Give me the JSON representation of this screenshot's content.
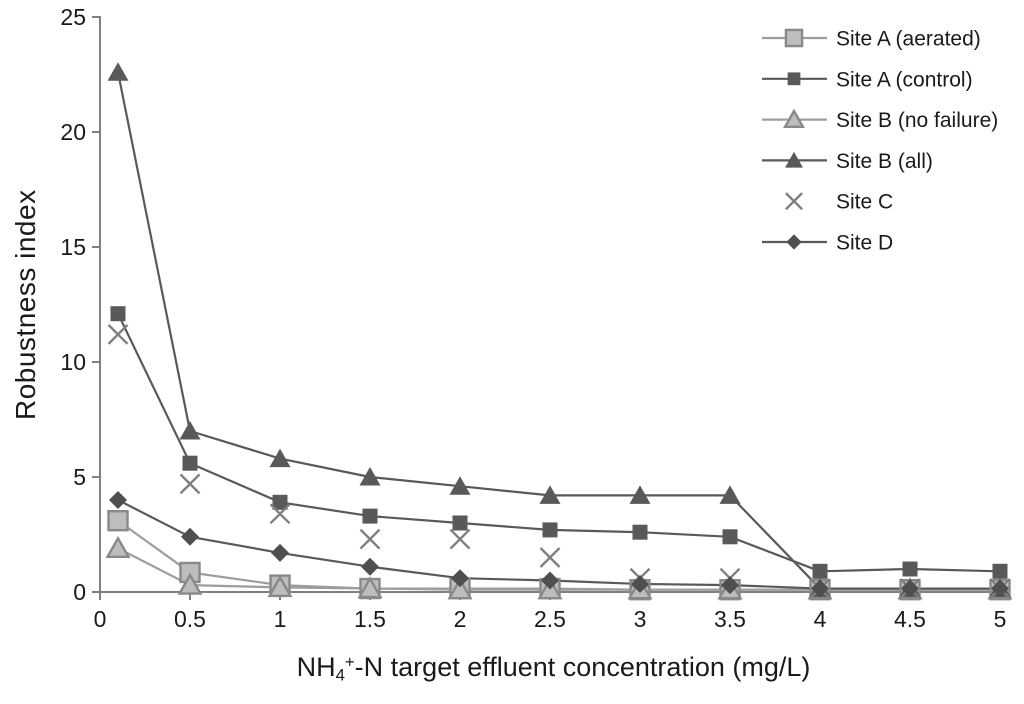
{
  "figure": {
    "y_axis_title": "Robustness index",
    "x_axis_title": {
      "pre": "NH",
      "sub": "4",
      "sup": "+",
      "post": "-N target effluent concentration (mg/L)"
    }
  },
  "chart_data": {
    "type": "line",
    "title": "",
    "xlabel": "NH4+-N target effluent concentration (mg/L)",
    "ylabel": "Robustness index",
    "xlim": [
      0,
      5.05
    ],
    "ylim": [
      0,
      25
    ],
    "grid": false,
    "legend_position": "top-right",
    "x": [
      0.1,
      0.5,
      1,
      1.5,
      2,
      2.5,
      3,
      3.5,
      4,
      4.5,
      5
    ],
    "x_ticks": [
      {
        "v": 0,
        "label": "0"
      },
      {
        "v": 0.5,
        "label": "0.5"
      },
      {
        "v": 1,
        "label": "1"
      },
      {
        "v": 1.5,
        "label": "1.5"
      },
      {
        "v": 2,
        "label": "2"
      },
      {
        "v": 2.5,
        "label": "2.5"
      },
      {
        "v": 3,
        "label": "3"
      },
      {
        "v": 3.5,
        "label": "3.5"
      },
      {
        "v": 4,
        "label": "4"
      },
      {
        "v": 4.5,
        "label": "4.5"
      },
      {
        "v": 5,
        "label": "5"
      }
    ],
    "y_ticks": [
      {
        "v": 0,
        "label": "0"
      },
      {
        "v": 5,
        "label": "5"
      },
      {
        "v": 10,
        "label": "10"
      },
      {
        "v": 15,
        "label": "15"
      },
      {
        "v": 20,
        "label": "20"
      },
      {
        "v": 25,
        "label": "25"
      }
    ],
    "series": [
      {
        "name": "Site A (aerated)",
        "marker": "square-light",
        "line": true,
        "line_color": "#9d9d9d",
        "values": [
          3.1,
          0.85,
          0.3,
          0.15,
          0.15,
          0.15,
          0.1,
          0.1,
          0.1,
          0.1,
          0.1
        ]
      },
      {
        "name": "Site A (control)",
        "marker": "square-dark",
        "line": true,
        "line_color": "#595959",
        "values": [
          12.1,
          5.6,
          3.9,
          3.3,
          3.0,
          2.7,
          2.6,
          2.4,
          0.9,
          1.0,
          0.9
        ]
      },
      {
        "name": "Site B (no failure)",
        "marker": "triangle-light",
        "line": true,
        "line_color": "#9d9d9d",
        "values": [
          1.9,
          0.3,
          0.2,
          0.15,
          0.1,
          0.1,
          0.1,
          0.1,
          0.1,
          0.1,
          0.1
        ]
      },
      {
        "name": "Site B (all)",
        "marker": "triangle-dark",
        "line": true,
        "line_color": "#595959",
        "values": [
          22.6,
          7.0,
          5.8,
          5.0,
          4.6,
          4.2,
          4.2,
          4.2,
          0.15,
          0.15,
          0.15
        ]
      },
      {
        "name": "Site C",
        "marker": "x",
        "line": false,
        "line_color": "#808080",
        "values": [
          11.2,
          4.7,
          3.4,
          2.3,
          2.3,
          1.5,
          0.6,
          0.6,
          0.15,
          0.15,
          0.15
        ]
      },
      {
        "name": "Site D",
        "marker": "diamond-dark",
        "line": true,
        "line_color": "#595959",
        "values": [
          4.0,
          2.4,
          1.7,
          1.1,
          0.6,
          0.5,
          0.35,
          0.3,
          0.15,
          0.15,
          0.15
        ]
      }
    ],
    "colors": {
      "axis": "#808080",
      "text": "#1a1a1a",
      "dark": "#595959",
      "diamond": "#4f4f4f",
      "light_line": "#9d9d9d",
      "light_fill": "#bdbdbd",
      "light_stroke": "#898989",
      "x_marker": "#808080"
    }
  }
}
